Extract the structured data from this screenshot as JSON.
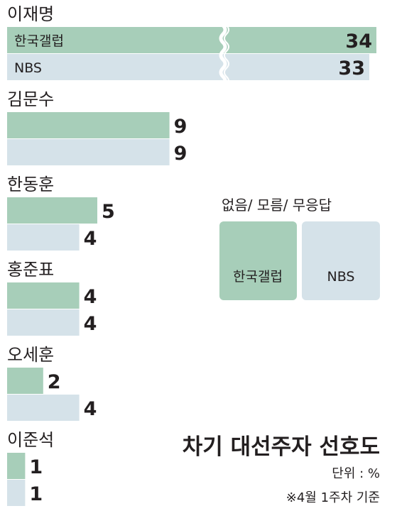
{
  "chart_data": {
    "type": "bar",
    "title": "차기 대선주자 선호도",
    "unit_note": "단위 : %",
    "date_note": "※4월 1주차 기준",
    "categories": [
      "이재명",
      "김문수",
      "한동훈",
      "홍준표",
      "오세훈",
      "이준석"
    ],
    "series": [
      {
        "name": "한국갤럽",
        "values": [
          34,
          9,
          5,
          4,
          2,
          1
        ]
      },
      {
        "name": "NBS",
        "values": [
          33,
          9,
          4,
          4,
          4,
          1
        ]
      }
    ],
    "bar_labels": [
      "한국갤럽",
      "NBS"
    ],
    "legend": {
      "title": "없음/ 모름/ 무응답",
      "items": [
        "한국갤럽",
        "NBS"
      ],
      "placement": "right"
    },
    "axis_break": true,
    "colors": {
      "한국갤럽": "#a7ceb9",
      "NBS": "#d5e2e9"
    }
  }
}
